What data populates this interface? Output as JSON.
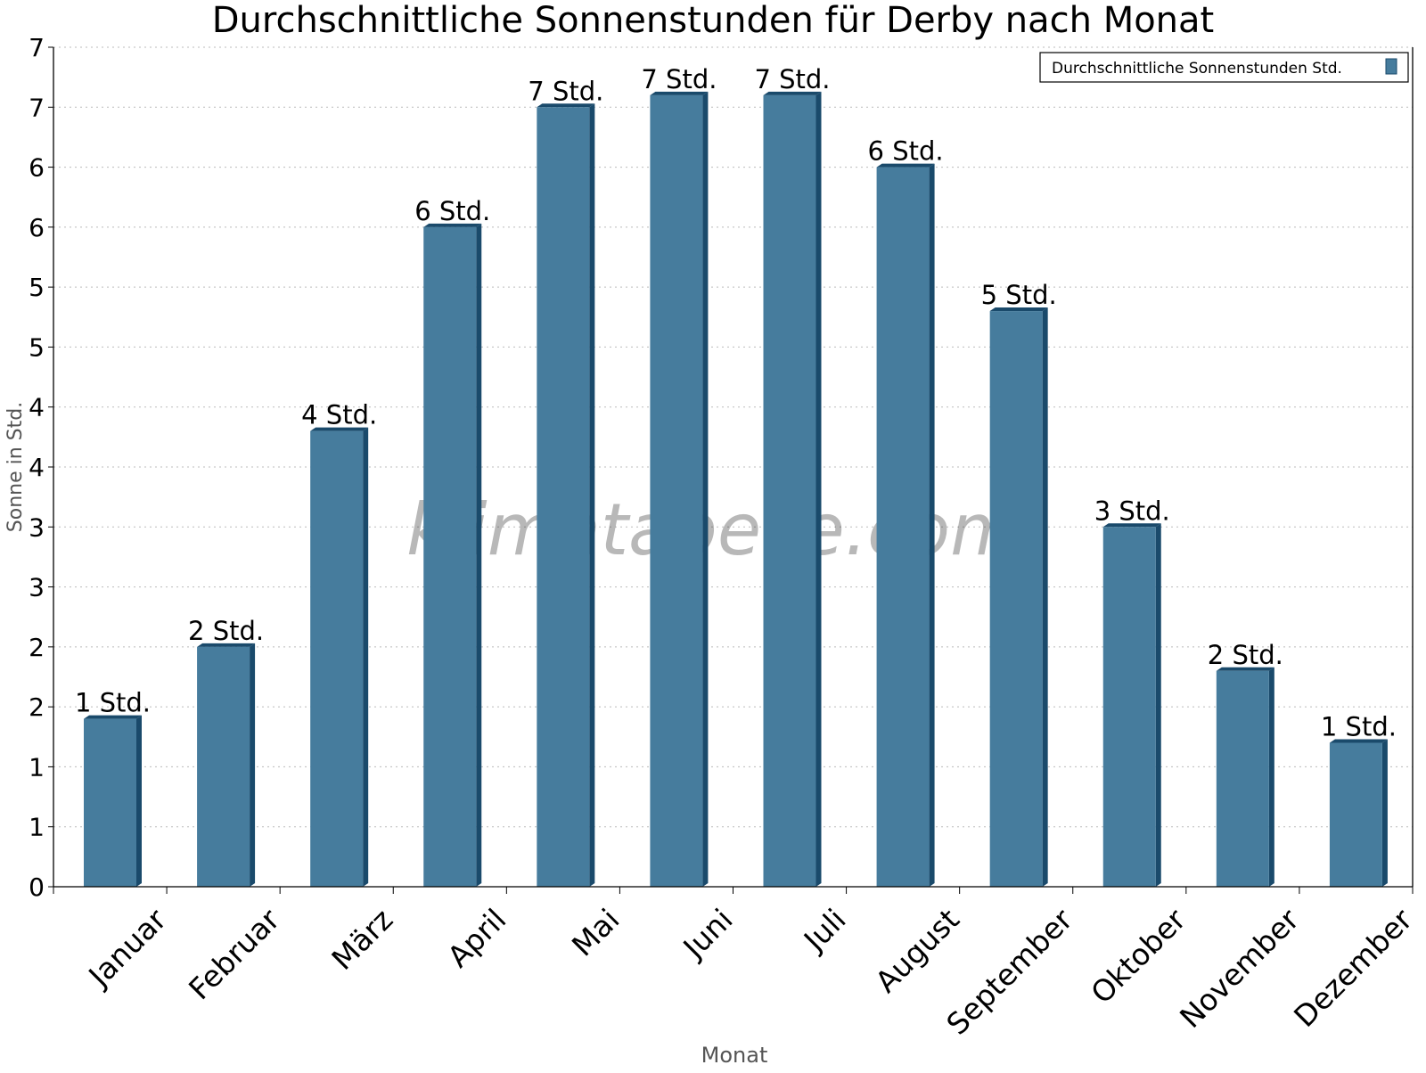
{
  "chart_data": {
    "type": "bar",
    "title": "Durchschnittliche Sonnenstunden für Derby nach Monat",
    "xlabel": "Monat",
    "ylabel": "Sonne in Std.",
    "ylim": [
      0,
      7
    ],
    "yticks": [
      0,
      0.5,
      1,
      1.5,
      2,
      2.5,
      3,
      3.5,
      4,
      4.5,
      5,
      5.5,
      6,
      6.5,
      7
    ],
    "ytick_labels": [
      "0",
      "1",
      "1",
      "2",
      "2",
      "3",
      "3",
      "4",
      "4",
      "5",
      "5",
      "6",
      "6",
      "7",
      "7"
    ],
    "grid": true,
    "legend_position": "top-right",
    "categories": [
      "Januar",
      "Februar",
      "März",
      "April",
      "Mai",
      "Juni",
      "Juli",
      "August",
      "September",
      "Oktober",
      "November",
      "Dezember"
    ],
    "series": [
      {
        "name": "Durchschnittliche Sonnenstunden Std.",
        "color": "#467c9d",
        "side_color": "#1a4a6b",
        "values": [
          1.4,
          2.0,
          3.8,
          5.5,
          6.5,
          6.6,
          6.6,
          6.0,
          4.8,
          3.0,
          1.8,
          1.2
        ],
        "data_labels": [
          "1 Std.",
          "2 Std.",
          "4 Std.",
          "6 Std.",
          "7 Std.",
          "7 Std.",
          "7 Std.",
          "6 Std.",
          "5 Std.",
          "3 Std.",
          "2 Std.",
          "1 Std."
        ]
      }
    ],
    "watermark": "klimatabelle.com"
  }
}
